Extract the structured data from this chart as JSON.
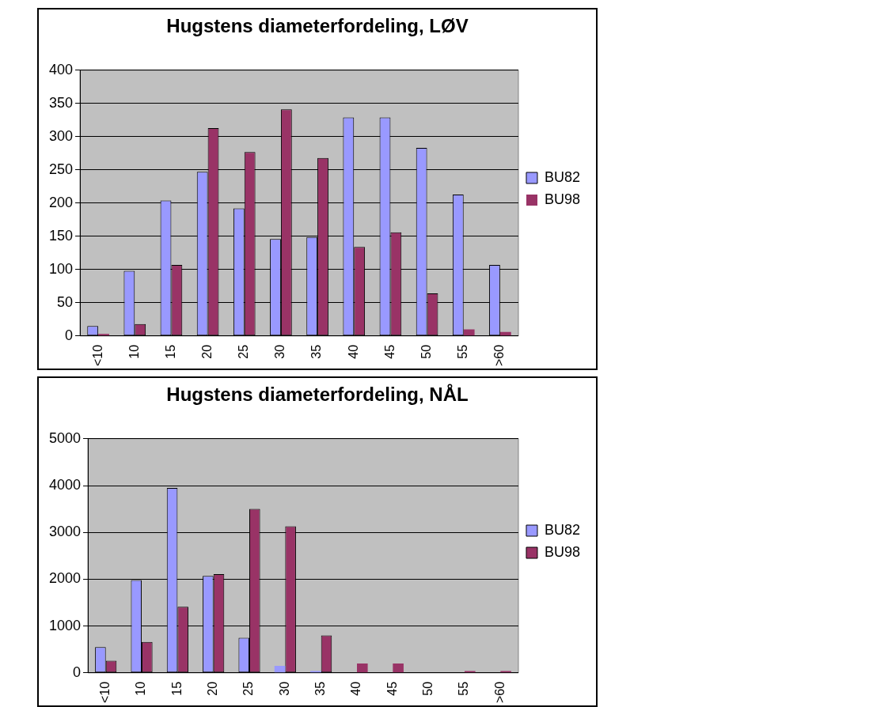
{
  "chart_data": [
    {
      "type": "bar",
      "title": "Hugstens diameterfordeling, LØV",
      "categories": [
        "<10",
        "10",
        "15",
        "20",
        "25",
        "30",
        "35",
        "40",
        "45",
        "50",
        "55",
        ">60"
      ],
      "series": [
        {
          "name": "BU82",
          "color": "#9999ff",
          "values": [
            15,
            98,
            204,
            247,
            192,
            146,
            149,
            329,
            329,
            283,
            213,
            107
          ]
        },
        {
          "name": "BU98",
          "color": "#993366",
          "values": [
            3,
            18,
            107,
            313,
            277,
            341,
            268,
            134,
            156,
            64,
            10,
            6
          ]
        }
      ],
      "ylim": [
        0,
        400
      ],
      "yticks": [
        0,
        50,
        100,
        150,
        200,
        250,
        300,
        350,
        400
      ],
      "grid": "y",
      "legend": "right"
    },
    {
      "type": "bar",
      "title": "Hugstens diameterfordeling, NÅL",
      "categories": [
        "<10",
        "10",
        "15",
        "20",
        "25",
        "30",
        "35",
        "40",
        "45",
        "50",
        "55",
        ">60"
      ],
      "series": [
        {
          "name": "BU82",
          "color": "#9999ff",
          "values": [
            550,
            1980,
            3950,
            2070,
            750,
            150,
            40,
            0,
            0,
            0,
            0,
            0
          ]
        },
        {
          "name": "BU98",
          "color": "#993366",
          "values": [
            260,
            660,
            1410,
            2110,
            3500,
            3130,
            800,
            200,
            200,
            0,
            40,
            40
          ]
        }
      ],
      "ylim": [
        0,
        5000
      ],
      "yticks": [
        0,
        1000,
        2000,
        3000,
        4000,
        5000
      ],
      "grid": "y",
      "legend": "right"
    }
  ]
}
